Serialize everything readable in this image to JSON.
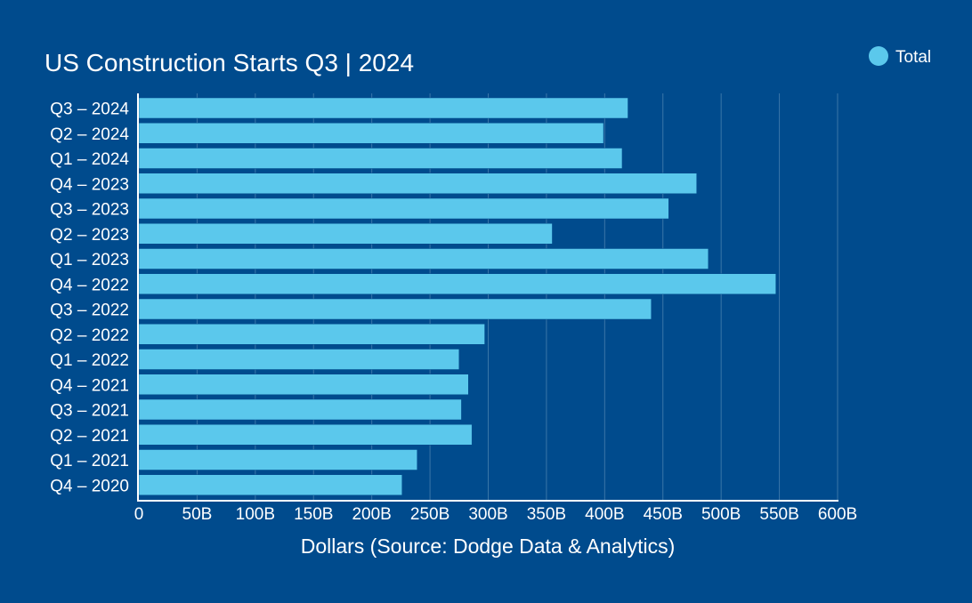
{
  "colors": {
    "background": "#004b8d",
    "bar": "#5bc8ec",
    "text": "#ffffff",
    "grid": "#3a76a8"
  },
  "chart_data": {
    "type": "bar",
    "orientation": "horizontal",
    "title": "US Construction Starts Q3 | 2024",
    "xlabel": "Dollars (Source: Dodge Data & Analytics)",
    "ylabel": "",
    "xlim": [
      0,
      600
    ],
    "x_ticks": [
      0,
      50,
      100,
      150,
      200,
      250,
      300,
      350,
      400,
      450,
      500,
      550,
      600
    ],
    "x_tick_labels": [
      "0",
      "50B",
      "100B",
      "150B",
      "200B",
      "250B",
      "300B",
      "350B",
      "400B",
      "450B",
      "500B",
      "550B",
      "600B"
    ],
    "grid": true,
    "legend": {
      "placement": "top-right",
      "entries": [
        "Total"
      ]
    },
    "categories": [
      "Q3 – 2024",
      "Q2 – 2024",
      "Q1 – 2024",
      "Q4 – 2023",
      "Q3 – 2023",
      "Q2 – 2023",
      "Q1 – 2023",
      "Q4 – 2022",
      "Q3 – 2022",
      "Q2 – 2022",
      "Q1 – 2022",
      "Q4 – 2021",
      "Q3 – 2021",
      "Q2 – 2021",
      "Q1 – 2021",
      "Q4 – 2020"
    ],
    "series": [
      {
        "name": "Total",
        "values": [
          420,
          399,
          415,
          479,
          455,
          355,
          489,
          547,
          440,
          297,
          275,
          283,
          277,
          286,
          239,
          226
        ]
      }
    ]
  }
}
